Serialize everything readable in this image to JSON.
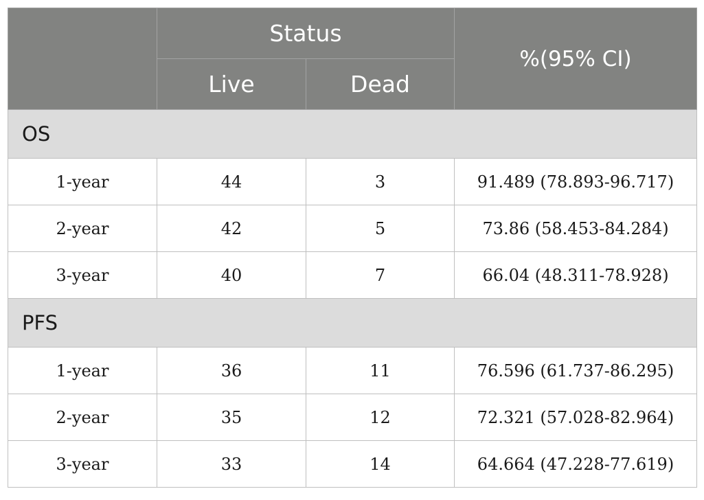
{
  "header": {
    "status": "Status",
    "live": "Live",
    "dead": "Dead",
    "ci": "%(95% CI)"
  },
  "sections": [
    {
      "label": "OS",
      "rows": [
        {
          "period": "1-year",
          "live": "44",
          "dead": "3",
          "ci": "91.489 (78.893-96.717)"
        },
        {
          "period": "2-year",
          "live": "42",
          "dead": "5",
          "ci": "73.86 (58.453-84.284)"
        },
        {
          "period": "3-year",
          "live": "40",
          "dead": "7",
          "ci": "66.04 (48.311-78.928)"
        }
      ]
    },
    {
      "label": "PFS",
      "rows": [
        {
          "period": "1-year",
          "live": "36",
          "dead": "11",
          "ci": "76.596 (61.737-86.295)"
        },
        {
          "period": "2-year",
          "live": "35",
          "dead": "12",
          "ci": "72.321 (57.028-82.964)"
        },
        {
          "period": "3-year",
          "live": "33",
          "dead": "14",
          "ci": "64.664 (47.228-77.619)"
        }
      ]
    }
  ]
}
